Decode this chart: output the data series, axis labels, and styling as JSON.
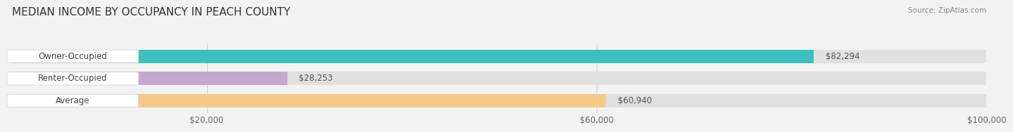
{
  "title": "MEDIAN INCOME BY OCCUPANCY IN PEACH COUNTY",
  "source": "Source: ZipAtlas.com",
  "categories": [
    "Owner-Occupied",
    "Renter-Occupied",
    "Average"
  ],
  "values": [
    82294,
    28253,
    60940
  ],
  "bar_colors": [
    "#3bbfbf",
    "#c4a8d0",
    "#f5c98a"
  ],
  "bar_labels": [
    "$82,294",
    "$28,253",
    "$60,940"
  ],
  "xlim": [
    0,
    100000
  ],
  "xticks": [
    0,
    20000,
    60000,
    100000
  ],
  "xtick_labels": [
    "",
    "$20,000",
    "$60,000",
    "$100,000"
  ],
  "background_color": "#f2f2f2",
  "bar_bg_color": "#e0e0e0",
  "title_fontsize": 11,
  "label_fontsize": 8.5
}
